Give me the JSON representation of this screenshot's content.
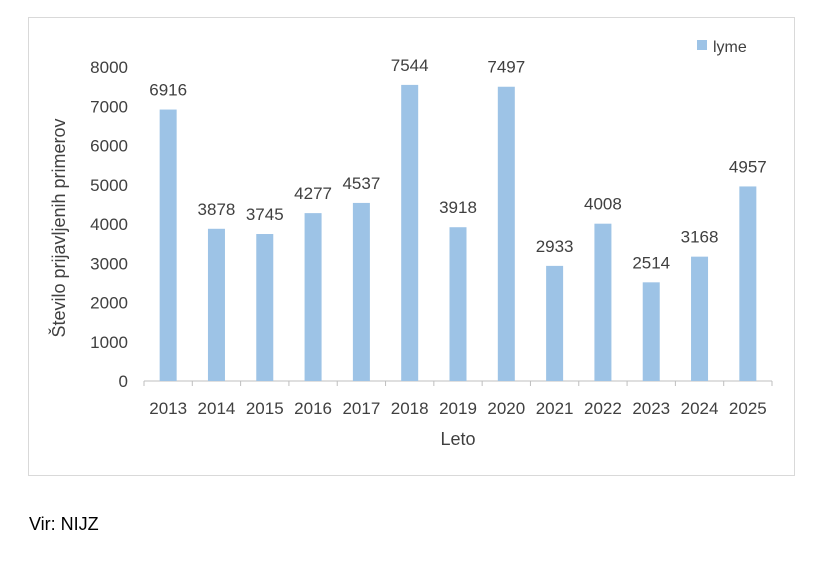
{
  "chart_data": {
    "type": "bar",
    "categories": [
      "2013",
      "2014",
      "2015",
      "2016",
      "2017",
      "2018",
      "2019",
      "2020",
      "2021",
      "2022",
      "2023",
      "2024",
      "2025"
    ],
    "series": [
      {
        "name": "lyme",
        "values": [
          6916,
          3878,
          3745,
          4277,
          4537,
          7544,
          3918,
          7497,
          2933,
          4008,
          2514,
          3168,
          4957
        ]
      }
    ],
    "xlabel": "Leto",
    "ylabel": "Število prijavljenih primerov",
    "ylim": [
      0,
      8000
    ],
    "yticks": [
      0,
      1000,
      2000,
      3000,
      4000,
      5000,
      6000,
      7000,
      8000
    ],
    "grid": false,
    "legend_position": "top-right",
    "bar_color": "#9dc3e6",
    "axis_color": "#bfbfbf"
  },
  "source_note": "Vir: NIJZ"
}
